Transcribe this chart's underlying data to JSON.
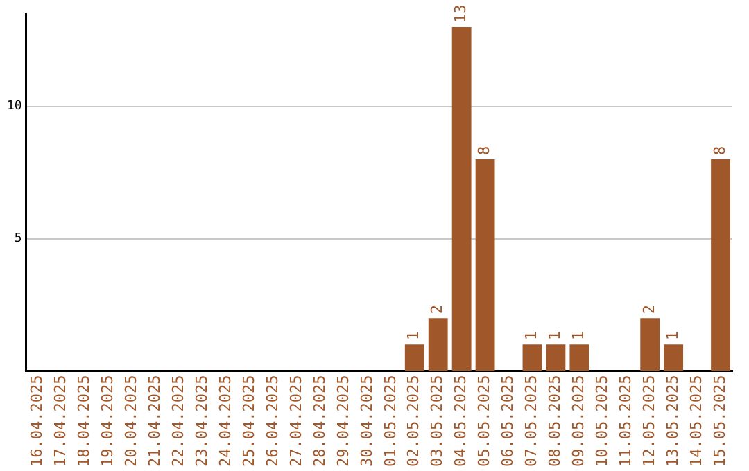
{
  "chart_data": {
    "type": "bar",
    "categories": [
      "16.04.2025",
      "17.04.2025",
      "18.04.2025",
      "19.04.2025",
      "20.04.2025",
      "21.04.2025",
      "22.04.2025",
      "23.04.2025",
      "24.04.2025",
      "25.04.2025",
      "26.04.2025",
      "27.04.2025",
      "28.04.2025",
      "29.04.2025",
      "30.04.2025",
      "01.05.2025",
      "02.05.2025",
      "03.05.2025",
      "04.05.2025",
      "05.05.2025",
      "06.05.2025",
      "07.05.2025",
      "08.05.2025",
      "09.05.2025",
      "10.05.2025",
      "11.05.2025",
      "12.05.2025",
      "13.05.2025",
      "14.05.2025",
      "15.05.2025"
    ],
    "values": [
      0,
      0,
      0,
      0,
      0,
      0,
      0,
      0,
      0,
      0,
      0,
      0,
      0,
      0,
      0,
      0,
      1,
      2,
      13,
      8,
      0,
      1,
      1,
      1,
      0,
      0,
      2,
      1,
      0,
      8
    ],
    "value_labels": [
      null,
      null,
      null,
      null,
      null,
      null,
      null,
      null,
      null,
      null,
      null,
      null,
      null,
      null,
      null,
      null,
      "1",
      "2",
      "13",
      "8",
      null,
      "1",
      "1",
      "1",
      null,
      null,
      "2",
      "1",
      null,
      "8"
    ],
    "color": "#a0572a",
    "ylim": [
      0,
      13.5
    ],
    "yticks": [
      5,
      10
    ],
    "grid": "y",
    "legend": false
  }
}
